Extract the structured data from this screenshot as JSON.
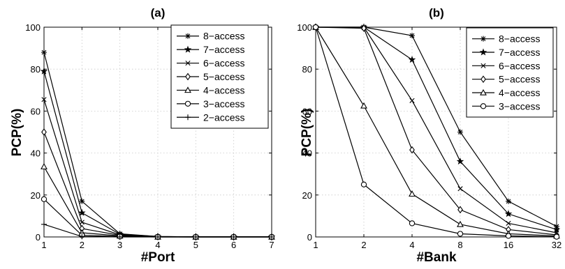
{
  "chart_data": [
    {
      "type": "line",
      "title": "(a)",
      "xlabel": "#Port",
      "ylabel": "PCP(%)",
      "x": [
        "1",
        "2",
        "3",
        "4",
        "5",
        "6",
        "7"
      ],
      "xlim": [
        1,
        7
      ],
      "ylim": [
        0,
        100
      ],
      "yticks": [
        "0",
        "20",
        "40",
        "60",
        "80",
        "100"
      ],
      "grid": true,
      "legend_position": "top-right",
      "series": [
        {
          "name": "8−access",
          "marker": "asterisk",
          "values": [
            88,
            17,
            1.5,
            0.2,
            0.1,
            0.1,
            0.1
          ]
        },
        {
          "name": "7−access",
          "marker": "star",
          "values": [
            79,
            11.5,
            1.3,
            0.2,
            0.1,
            0.1,
            0.1
          ]
        },
        {
          "name": "6−access",
          "marker": "x",
          "values": [
            65.5,
            7,
            1,
            0.1,
            0,
            0,
            0
          ]
        },
        {
          "name": "5−access",
          "marker": "diamond",
          "values": [
            50,
            4,
            0.8,
            0.1,
            0,
            0,
            0
          ]
        },
        {
          "name": "4−access",
          "marker": "triangle",
          "values": [
            33.5,
            2,
            0.5,
            0,
            0,
            0,
            0
          ]
        },
        {
          "name": "3−access",
          "marker": "circle",
          "values": [
            18,
            0.8,
            0.2,
            0,
            0,
            0,
            0
          ]
        },
        {
          "name": "2−access",
          "marker": "plus",
          "values": [
            6,
            0.2,
            0,
            0,
            0,
            0,
            0
          ]
        }
      ]
    },
    {
      "type": "line",
      "title": "(b)",
      "xlabel": "#Bank",
      "ylabel": "PCP(%)",
      "x": [
        "1",
        "2",
        "4",
        "8",
        "16",
        "32"
      ],
      "xscale": "log2",
      "ylim": [
        0,
        100
      ],
      "yticks": [
        "0",
        "20",
        "40",
        "60",
        "80",
        "100"
      ],
      "grid": true,
      "legend_position": "top-right",
      "series": [
        {
          "name": "8−access",
          "marker": "asterisk",
          "values": [
            100,
            100,
            96,
            50,
            17,
            5
          ]
        },
        {
          "name": "7−access",
          "marker": "star",
          "values": [
            100,
            100,
            84.5,
            36,
            11,
            3.5
          ]
        },
        {
          "name": "6−access",
          "marker": "x",
          "values": [
            100,
            100,
            65,
            23,
            6.5,
            2
          ]
        },
        {
          "name": "5−access",
          "marker": "diamond",
          "values": [
            100,
            99.5,
            41.5,
            13,
            3.5,
            1
          ]
        },
        {
          "name": "4−access",
          "marker": "triangle",
          "values": [
            100,
            62.5,
            20.5,
            6,
            1.5,
            0.5
          ]
        },
        {
          "name": "3−access",
          "marker": "circle",
          "values": [
            100,
            25,
            6.5,
            1.5,
            0.5,
            0.1
          ]
        }
      ]
    }
  ]
}
